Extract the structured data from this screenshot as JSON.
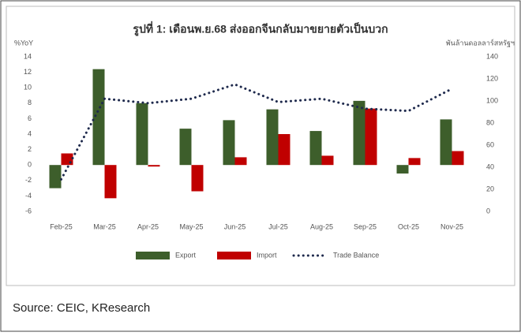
{
  "chart_data": {
    "type": "bar",
    "title": "รูปที่ 1: เดือนพ.ย.68 ส่งออกจีนกลับมาขยายตัวเป็นบวก",
    "ylabel": "%YoY",
    "y2label": "พันล้านดอลลาร์สหรัฐฯ",
    "categories": [
      "Feb-25",
      "Mar-25",
      "Apr-25",
      "May-25",
      "Jun-25",
      "Jul-25",
      "Aug-25",
      "Sep-25",
      "Oct-25",
      "Nov-25"
    ],
    "series": [
      {
        "name": "Export",
        "color": "#3d5e2b",
        "type": "bar",
        "values": [
          -3.0,
          12.4,
          8.0,
          4.7,
          5.8,
          7.2,
          4.4,
          8.3,
          -1.1,
          5.9
        ]
      },
      {
        "name": "Import",
        "color": "#c00000",
        "type": "bar",
        "values": [
          1.5,
          -4.3,
          -0.2,
          -3.4,
          1.0,
          4.0,
          1.2,
          7.3,
          0.9,
          1.8
        ]
      },
      {
        "name": "Trade Balance",
        "color": "#1f2a4d",
        "type": "line",
        "axis": "y2",
        "values": [
          29,
          102,
          98,
          102,
          115,
          99,
          102,
          93,
          91,
          111
        ]
      }
    ],
    "ylim": [
      -6,
      14
    ],
    "yticks": [
      -6,
      -4,
      -2,
      0,
      2,
      4,
      6,
      8,
      10,
      12,
      14
    ],
    "y2lim": [
      0,
      140
    ],
    "y2ticks": [
      0,
      20,
      40,
      60,
      80,
      100,
      120,
      140
    ],
    "grid": false,
    "legend": "bottom"
  },
  "source": "Source: CEIC, KResearch"
}
